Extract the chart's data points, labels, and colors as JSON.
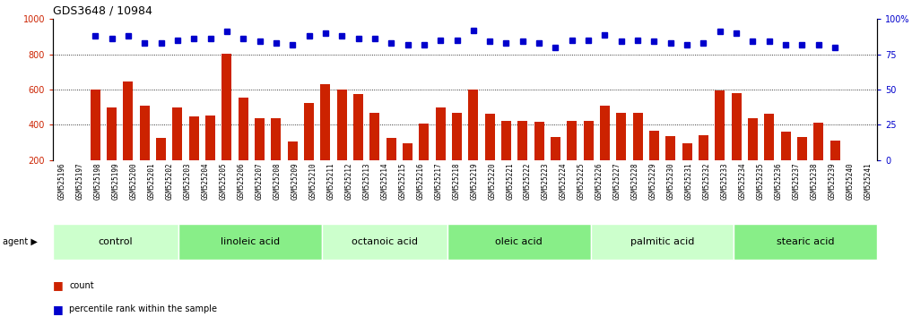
{
  "title": "GDS3648 / 10984",
  "categories": [
    "GSM525196",
    "GSM525197",
    "GSM525198",
    "GSM525199",
    "GSM525200",
    "GSM525201",
    "GSM525202",
    "GSM525203",
    "GSM525204",
    "GSM525205",
    "GSM525206",
    "GSM525207",
    "GSM525208",
    "GSM525209",
    "GSM525210",
    "GSM525211",
    "GSM525212",
    "GSM525213",
    "GSM525214",
    "GSM525215",
    "GSM525216",
    "GSM525217",
    "GSM525218",
    "GSM525219",
    "GSM525220",
    "GSM525221",
    "GSM525222",
    "GSM525223",
    "GSM525224",
    "GSM525225",
    "GSM525226",
    "GSM525227",
    "GSM525228",
    "GSM525229",
    "GSM525230",
    "GSM525231",
    "GSM525232",
    "GSM525233",
    "GSM525234",
    "GSM525235",
    "GSM525236",
    "GSM525237",
    "GSM525238",
    "GSM525239",
    "GSM525240",
    "GSM525241"
  ],
  "bar_values": [
    600,
    500,
    645,
    510,
    325,
    500,
    450,
    455,
    805,
    555,
    435,
    435,
    305,
    525,
    630,
    600,
    575,
    470,
    325,
    295,
    405,
    500,
    470,
    600,
    465,
    420,
    420,
    415,
    330,
    420,
    420,
    510,
    470,
    470,
    365,
    335,
    295,
    340,
    595,
    580,
    440,
    465,
    360,
    330,
    410,
    310
  ],
  "percentile_values": [
    88,
    86,
    88,
    83,
    83,
    85,
    86,
    86,
    91,
    86,
    84,
    83,
    82,
    88,
    90,
    88,
    86,
    86,
    83,
    82,
    82,
    85,
    85,
    92,
    84,
    83,
    84,
    83,
    80,
    85,
    85,
    89,
    84,
    85,
    84,
    83,
    82,
    83,
    91,
    90,
    84,
    84,
    82,
    82,
    82,
    80
  ],
  "groups": [
    {
      "label": "control",
      "start": 0,
      "end": 7
    },
    {
      "label": "linoleic acid",
      "start": 7,
      "end": 15
    },
    {
      "label": "octanoic acid",
      "start": 15,
      "end": 22
    },
    {
      "label": "oleic acid",
      "start": 22,
      "end": 30
    },
    {
      "label": "palmitic acid",
      "start": 30,
      "end": 38
    },
    {
      "label": "stearic acid",
      "start": 38,
      "end": 46
    }
  ],
  "bar_color": "#cc2200",
  "dot_color": "#0000cc",
  "bar_bottom": 200,
  "ylim_left": [
    200,
    1000
  ],
  "ylim_right": [
    0,
    100
  ],
  "yticks_left": [
    200,
    400,
    600,
    800,
    1000
  ],
  "yticks_right": [
    0,
    25,
    50,
    75,
    100
  ],
  "grid_values": [
    400,
    600,
    800
  ],
  "group_colors": [
    "#ccffcc",
    "#88ee88"
  ],
  "tick_bg_color": "#cccccc",
  "sep_color": "#222222",
  "agent_label": "agent"
}
